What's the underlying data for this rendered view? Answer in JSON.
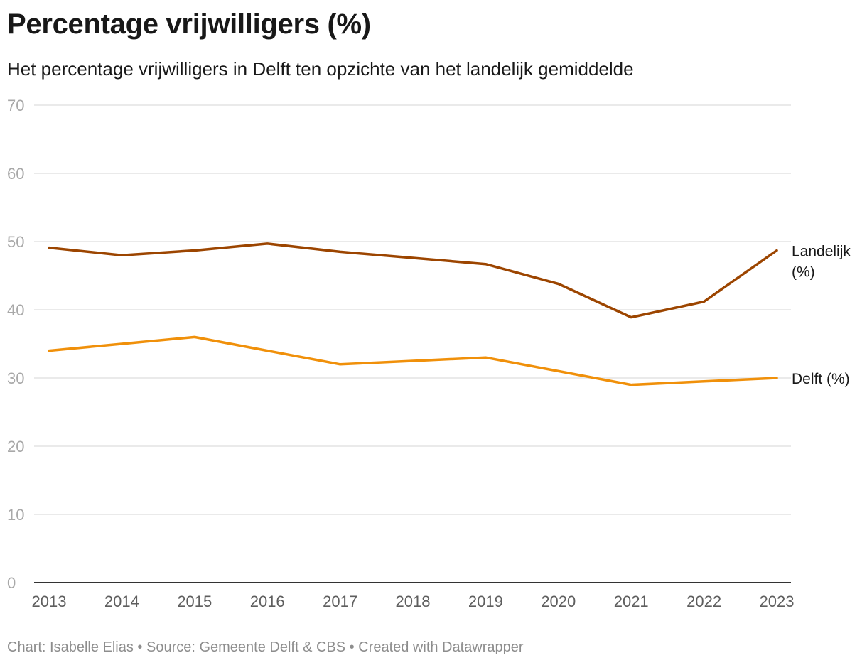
{
  "chart_data": {
    "type": "line",
    "title": "Percentage vrijwilligers (%)",
    "subtitle": "Het percentage vrijwilligers in Delft ten opzichte van het landelijk gemiddelde",
    "xlabel": "",
    "ylabel": "",
    "x": [
      "2013",
      "2014",
      "2015",
      "2016",
      "2017",
      "2018",
      "2019",
      "2020",
      "2021",
      "2022",
      "2023"
    ],
    "ylim": [
      0,
      70
    ],
    "yticks": [
      "0",
      "10",
      "20",
      "30",
      "40",
      "50",
      "60",
      "70"
    ],
    "grid": true,
    "series": [
      {
        "name": "Landelijk (%)",
        "label_lines": [
          "Landelijk",
          "(%)"
        ],
        "color": "#9c4500",
        "values": [
          49.1,
          48.0,
          48.7,
          49.7,
          48.5,
          47.6,
          46.7,
          43.8,
          38.9,
          41.2,
          48.7
        ]
      },
      {
        "name": "Delft (%)",
        "label_lines": [
          "Delft (%)"
        ],
        "color": "#f0900a",
        "values": [
          34,
          35,
          36,
          34,
          32,
          32.5,
          33,
          31,
          29,
          29.5,
          30
        ]
      }
    ]
  },
  "footer": "Chart: Isabelle Elias • Source: Gemeente Delft & CBS • Created with Datawrapper"
}
